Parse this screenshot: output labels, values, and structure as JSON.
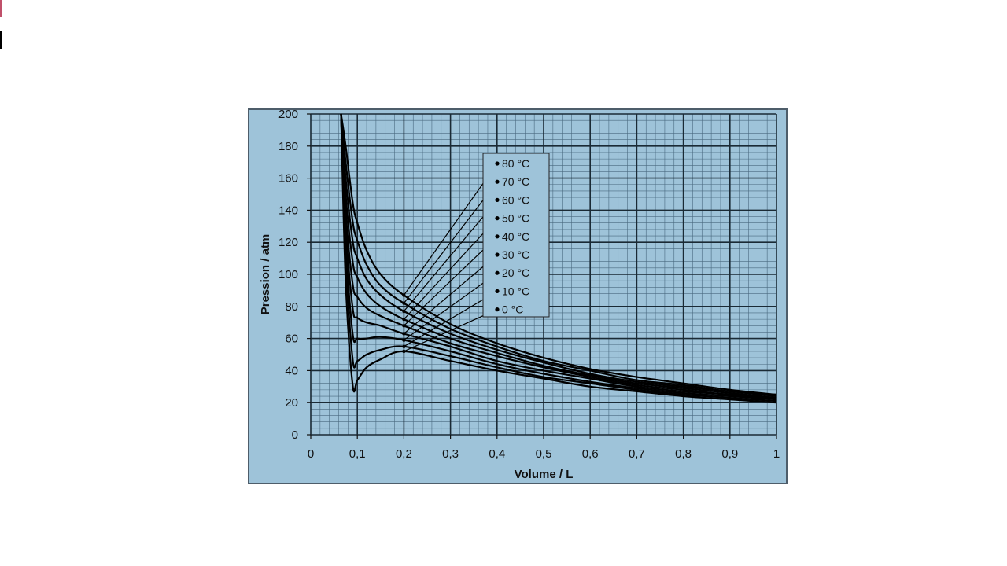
{
  "colors": {
    "frame_background": "#9ec3d9",
    "frame_border": "#4e5d6a",
    "grid_minor": "#4a6a80",
    "grid_major": "#1a2a35",
    "curve": "#000000",
    "legend_background": "#9ec3d9"
  },
  "chart_data": {
    "type": "line",
    "xlabel": "Volume / L",
    "ylabel": "Pression / atm",
    "xlim": [
      0,
      1
    ],
    "ylim": [
      0,
      200
    ],
    "x_ticks": [
      "0",
      "0,1",
      "0,2",
      "0,3",
      "0,4",
      "0,5",
      "0,6",
      "0,7",
      "0,8",
      "0,9",
      "1"
    ],
    "y_ticks": [
      "0",
      "20",
      "40",
      "60",
      "80",
      "100",
      "120",
      "140",
      "160",
      "180",
      "200"
    ],
    "grid": true,
    "legend": "top-center",
    "series": [
      {
        "name": "0 °C",
        "x": [
          0.065,
          0.075,
          0.09,
          0.1,
          0.12,
          0.15,
          0.2,
          0.3,
          0.4,
          0.5,
          0.6,
          0.7,
          0.8,
          0.9,
          1.0
        ],
        "y": [
          200,
          95,
          31,
          34,
          42,
          47,
          52,
          46,
          40,
          35,
          30,
          27,
          24,
          22,
          20
        ]
      },
      {
        "name": "10 °C",
        "x": [
          0.065,
          0.075,
          0.09,
          0.1,
          0.12,
          0.15,
          0.2,
          0.3,
          0.4,
          0.5,
          0.6,
          0.7,
          0.8,
          0.9,
          1.0
        ],
        "y": [
          200,
          110,
          47,
          46,
          50,
          53,
          55,
          49,
          42,
          36,
          32,
          28,
          25,
          23,
          21
        ]
      },
      {
        "name": "20 °C",
        "x": [
          0.065,
          0.075,
          0.09,
          0.1,
          0.12,
          0.15,
          0.2,
          0.3,
          0.4,
          0.5,
          0.6,
          0.7,
          0.8,
          0.9,
          1.0
        ],
        "y": [
          200,
          120,
          63,
          60,
          60,
          61,
          59,
          52,
          44,
          38,
          33,
          29,
          26,
          24,
          22
        ]
      },
      {
        "name": "30 °C",
        "x": [
          0.065,
          0.075,
          0.09,
          0.1,
          0.12,
          0.15,
          0.2,
          0.3,
          0.4,
          0.5,
          0.6,
          0.7,
          0.8,
          0.9,
          1.0
        ],
        "y": [
          200,
          130,
          79,
          73,
          70,
          68,
          63,
          55,
          46,
          40,
          35,
          30,
          27,
          25,
          22
        ]
      },
      {
        "name": "40 °C",
        "x": [
          0.065,
          0.075,
          0.09,
          0.1,
          0.12,
          0.15,
          0.2,
          0.3,
          0.4,
          0.5,
          0.6,
          0.7,
          0.8,
          0.9,
          1.0
        ],
        "y": [
          200,
          140,
          94,
          86,
          79,
          74,
          68,
          57,
          49,
          42,
          36,
          31,
          28,
          25,
          23
        ]
      },
      {
        "name": "50 °C",
        "x": [
          0.065,
          0.075,
          0.09,
          0.1,
          0.12,
          0.15,
          0.2,
          0.3,
          0.4,
          0.5,
          0.6,
          0.7,
          0.8,
          0.9,
          1.0
        ],
        "y": [
          200,
          150,
          108,
          98,
          88,
          80,
          72,
          60,
          51,
          43,
          37,
          32,
          29,
          26,
          23
        ]
      },
      {
        "name": "60 °C",
        "x": [
          0.065,
          0.075,
          0.09,
          0.1,
          0.12,
          0.15,
          0.2,
          0.3,
          0.4,
          0.5,
          0.6,
          0.7,
          0.8,
          0.9,
          1.0
        ],
        "y": [
          200,
          160,
          121,
          110,
          97,
          87,
          77,
          63,
          53,
          45,
          38,
          33,
          30,
          27,
          24
        ]
      },
      {
        "name": "70 °C",
        "x": [
          0.065,
          0.075,
          0.09,
          0.1,
          0.12,
          0.15,
          0.2,
          0.3,
          0.4,
          0.5,
          0.6,
          0.7,
          0.8,
          0.9,
          1.0
        ],
        "y": [
          200,
          170,
          133,
          121,
          106,
          93,
          82,
          66,
          55,
          46,
          40,
          34,
          31,
          27,
          25
        ]
      },
      {
        "name": "80 °C",
        "x": [
          0.065,
          0.075,
          0.09,
          0.1,
          0.12,
          0.15,
          0.2,
          0.3,
          0.4,
          0.5,
          0.6,
          0.7,
          0.8,
          0.9,
          1.0
        ],
        "y": [
          200,
          180,
          145,
          132,
          115,
          100,
          87,
          69,
          57,
          48,
          41,
          36,
          32,
          28,
          25
        ]
      }
    ]
  }
}
